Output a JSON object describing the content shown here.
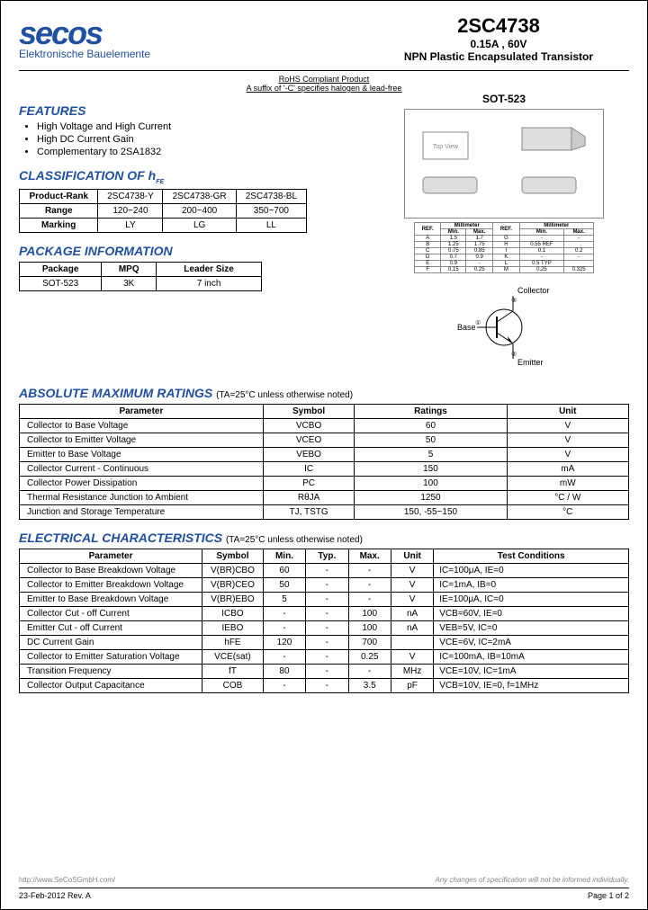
{
  "logo": {
    "text": "secos",
    "subtitle": "Elektronische Bauelemente"
  },
  "title": {
    "part": "2SC4738",
    "rating": "0.15A , 60V",
    "desc": "NPN Plastic Encapsulated Transistor"
  },
  "compliance": {
    "line1": "RoHS Compliant Product",
    "line2": "A suffix of '-C' specifies halogen & lead-free"
  },
  "features": {
    "title": "FEATURES",
    "items": [
      "High Voltage and High Current",
      "High DC Current Gain",
      "Complementary to 2SA1832"
    ]
  },
  "classification": {
    "title": "CLASSIFICATION OF h",
    "title_sub": "FE",
    "headers": [
      "Product-Rank",
      "2SC4738-Y",
      "2SC4738-GR",
      "2SC4738-BL"
    ],
    "rows": [
      [
        "Range",
        "120~240",
        "200~400",
        "350~700"
      ],
      [
        "Marking",
        "LY",
        "LG",
        "LL"
      ]
    ]
  },
  "package_info": {
    "title": "PACKAGE INFORMATION",
    "headers": [
      "Package",
      "MPQ",
      "Leader Size"
    ],
    "rows": [
      [
        "SOT-523",
        "3K",
        "7 inch"
      ]
    ]
  },
  "package_outline": {
    "label": "SOT-523",
    "dim_headers": [
      "REF.",
      "Min.",
      "Max.",
      "REF.",
      "Min.",
      "Max."
    ],
    "dim_rows": [
      [
        "A",
        "1.5",
        "1.7",
        "G",
        "-",
        "-"
      ],
      [
        "B",
        "1.25",
        "1.75",
        "H",
        "0.55 REF",
        ""
      ],
      [
        "C",
        "0.75",
        "0.85",
        "I",
        "0.1",
        "0.2"
      ],
      [
        "D",
        "0.7",
        "0.9",
        "K",
        "-",
        "-"
      ],
      [
        "E",
        "0.9",
        "-",
        "L",
        "0.5 TYP",
        ""
      ],
      [
        "F",
        "0.15",
        "0.25",
        "M",
        "0.25",
        "0.325"
      ]
    ],
    "pins": {
      "collector": "Collector",
      "base": "Base",
      "emitter": "Emitter"
    }
  },
  "ratings": {
    "title": "ABSOLUTE MAXIMUM RATINGS",
    "condition": "(TA=25°C unless otherwise noted)",
    "headers": [
      "Parameter",
      "Symbol",
      "Ratings",
      "Unit"
    ],
    "rows": [
      [
        "Collector to Base Voltage",
        "VCBO",
        "60",
        "V"
      ],
      [
        "Collector to Emitter Voltage",
        "VCEO",
        "50",
        "V"
      ],
      [
        "Emitter to Base Voltage",
        "VEBO",
        "5",
        "V"
      ],
      [
        "Collector Current - Continuous",
        "IC",
        "150",
        "mA"
      ],
      [
        "Collector Power Dissipation",
        "PC",
        "100",
        "mW"
      ],
      [
        "Thermal Resistance Junction to Ambient",
        "RθJA",
        "1250",
        "°C / W"
      ],
      [
        "Junction and Storage Temperature",
        "TJ, TSTG",
        "150, -55~150",
        "°C"
      ]
    ]
  },
  "electrical": {
    "title": "ELECTRICAL CHARACTERISTICS",
    "condition": "(TA=25°C unless otherwise noted)",
    "headers": [
      "Parameter",
      "Symbol",
      "Min.",
      "Typ.",
      "Max.",
      "Unit",
      "Test Conditions"
    ],
    "rows": [
      [
        "Collector to Base Breakdown Voltage",
        "V(BR)CBO",
        "60",
        "-",
        "-",
        "V",
        "IC=100μA, IE=0"
      ],
      [
        "Collector to Emitter Breakdown Voltage",
        "V(BR)CEO",
        "50",
        "-",
        "-",
        "V",
        "IC=1mA, IB=0"
      ],
      [
        "Emitter to Base Breakdown Voltage",
        "V(BR)EBO",
        "5",
        "-",
        "-",
        "V",
        "IE=100μA, IC=0"
      ],
      [
        "Collector Cut - off Current",
        "ICBO",
        "-",
        "-",
        "100",
        "nA",
        "VCB=60V, IE=0"
      ],
      [
        "Emitter Cut - off Current",
        "IEBO",
        "-",
        "-",
        "100",
        "nA",
        "VEB=5V, IC=0"
      ],
      [
        "DC Current Gain",
        "hFE",
        "120",
        "-",
        "700",
        "",
        "VCE=6V, IC=2mA"
      ],
      [
        "Collector to Emitter Saturation Voltage",
        "VCE(sat)",
        "-",
        "-",
        "0.25",
        "V",
        "IC=100mA, IB=10mA"
      ],
      [
        "Transition Frequency",
        "fT",
        "80",
        "-",
        "-",
        "MHz",
        "VCE=10V, IC=1mA"
      ],
      [
        "Collector Output Capacitance",
        "COB",
        "-",
        "-",
        "3.5",
        "pF",
        "VCB=10V, IE=0, f=1MHz"
      ]
    ]
  },
  "footer": {
    "url": "http://www.SeCoSGmbH.com/",
    "note": "Any changes of specification will not be informed individually.",
    "date": "23-Feb-2012 Rev. A",
    "page": "Page  1  of  2"
  }
}
